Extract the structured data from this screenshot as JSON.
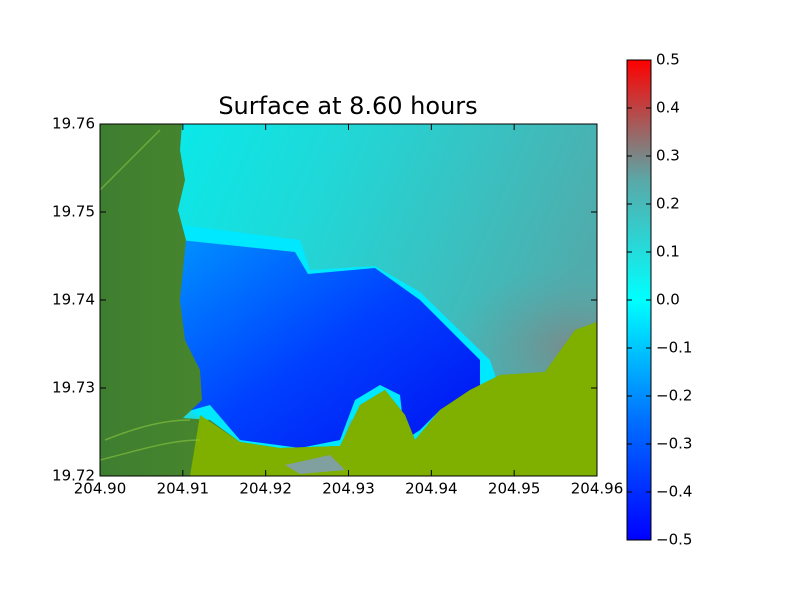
{
  "chart_data": {
    "type": "heatmap",
    "title": "Surface at 8.60 hours",
    "xlim": [
      204.9,
      204.96
    ],
    "xticks": [
      {
        "value": 204.9,
        "label": "204.90"
      },
      204.91,
      204.92,
      204.93,
      204.94,
      204.95,
      204.96
    ],
    "ylim": [
      19.72,
      19.76
    ],
    "yticks": [
      19.72,
      19.73,
      19.74,
      19.75,
      19.76
    ],
    "colorbar": {
      "lim": [
        -0.5,
        0.5
      ],
      "colors": [
        "#0000ff",
        "#0070ff",
        "#00ffff",
        "#5aa8a8",
        "#ff0000"
      ],
      "ticks": [
        {
          "value": -0.5,
          "label": "−0.5"
        },
        {
          "value": -0.4,
          "label": "−0.4"
        },
        {
          "value": -0.3,
          "label": "−0.3"
        },
        {
          "value": -0.2,
          "label": "−0.2"
        },
        {
          "value": -0.1,
          "label": "−0.1"
        },
        {
          "value": 0,
          "label": "0.0"
        },
        0.1,
        0.2,
        0.3,
        0.4,
        0.5
      ]
    }
  }
}
